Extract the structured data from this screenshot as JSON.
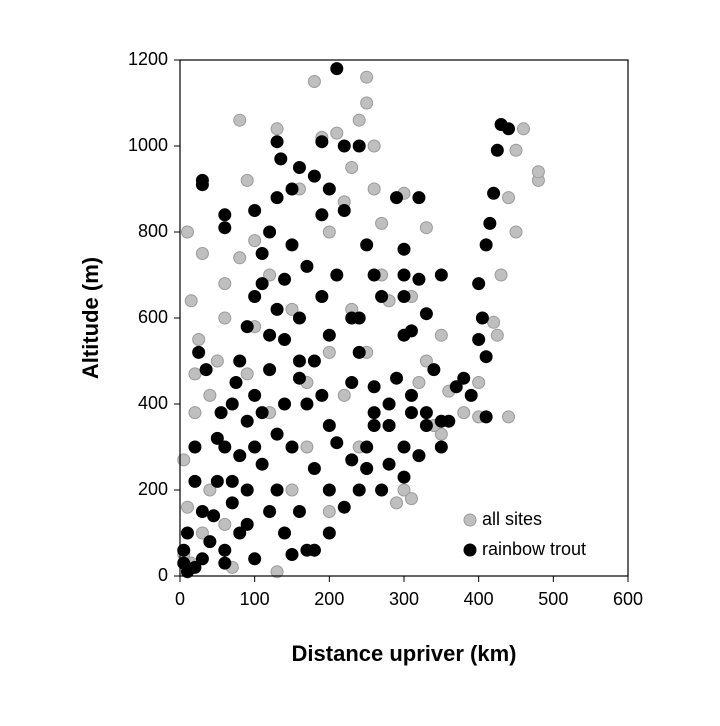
{
  "chart_data": {
    "type": "scatter",
    "xlabel": "Distance upriver (km)",
    "ylabel": "Altitude (m)",
    "xlim": [
      0,
      600
    ],
    "xticks": [
      0,
      100,
      200,
      300,
      400,
      500,
      600
    ],
    "ylim": [
      0,
      1200
    ],
    "yticks": [
      0,
      200,
      400,
      600,
      800,
      1000,
      1200
    ],
    "legend": "lower right",
    "series": [
      {
        "name": "all sites",
        "color": "#bfbfbf",
        "x": [
          30,
          10,
          15,
          80,
          90,
          130,
          180,
          250,
          250,
          240,
          460,
          480,
          450,
          440,
          450,
          430,
          420,
          425,
          400,
          440,
          300,
          330,
          310,
          120,
          60,
          50,
          20,
          5,
          100,
          150,
          200,
          250,
          280,
          320,
          300,
          350,
          70,
          130,
          30,
          5,
          260,
          270,
          230,
          200,
          170,
          40,
          20,
          60,
          100,
          160,
          190,
          230,
          350,
          330,
          290,
          310,
          340,
          240,
          280,
          270,
          100,
          80,
          40,
          10,
          170,
          180,
          220,
          250,
          360,
          380,
          400,
          25,
          15,
          90,
          150,
          120,
          60,
          200,
          220,
          210,
          260,
          480
        ],
        "values": [
          750,
          800,
          640,
          1060,
          920,
          1040,
          1150,
          1160,
          1100,
          1060,
          1040,
          920,
          990,
          880,
          800,
          700,
          590,
          560,
          450,
          370,
          890,
          810,
          650,
          700,
          600,
          500,
          380,
          270,
          300,
          200,
          150,
          250,
          350,
          450,
          200,
          330,
          20,
          10,
          100,
          50,
          900,
          700,
          620,
          520,
          450,
          420,
          470,
          680,
          780,
          900,
          1020,
          950,
          560,
          500,
          170,
          180,
          350,
          300,
          640,
          820,
          580,
          740,
          200,
          160,
          300,
          60,
          420,
          520,
          430,
          380,
          370,
          550,
          30,
          470,
          620,
          380,
          120,
          800,
          870,
          1030,
          1000,
          940
        ]
      },
      {
        "name": "rainbow trout",
        "color": "#000000",
        "x": [
          30,
          30,
          60,
          60,
          210,
          130,
          135,
          190,
          220,
          240,
          430,
          425,
          420,
          415,
          410,
          400,
          405,
          400,
          410,
          440,
          290,
          320,
          300,
          300,
          320,
          330,
          300,
          290,
          280,
          260,
          310,
          330,
          350,
          370,
          380,
          390,
          410,
          360,
          250,
          250,
          240,
          220,
          200,
          180,
          150,
          100,
          60,
          20,
          10,
          5,
          30,
          50,
          60,
          70,
          80,
          90,
          100,
          110,
          100,
          120,
          130,
          150,
          160,
          180,
          200,
          220,
          210,
          190,
          170,
          160,
          140,
          120,
          110,
          100,
          90,
          80,
          130,
          150,
          170,
          180,
          200,
          230,
          240,
          230,
          200,
          180,
          160,
          140,
          120,
          110,
          70,
          40,
          20,
          10,
          5,
          50,
          70,
          90,
          140,
          160,
          190,
          210,
          260,
          280,
          300,
          320,
          350,
          300,
          270,
          330,
          340,
          350,
          310,
          150,
          140,
          190,
          250,
          260,
          270,
          160,
          120,
          100,
          80,
          60,
          30,
          20,
          45,
          130,
          200,
          230,
          280,
          170,
          310,
          260,
          240,
          300,
          130,
          110,
          90,
          75,
          55,
          35,
          25
        ],
        "values": [
          920,
          910,
          840,
          810,
          1180,
          1010,
          970,
          1010,
          1000,
          1000,
          1050,
          990,
          890,
          820,
          770,
          680,
          600,
          550,
          510,
          1040,
          880,
          880,
          760,
          700,
          690,
          610,
          560,
          460,
          400,
          380,
          380,
          350,
          360,
          440,
          460,
          420,
          370,
          360,
          300,
          250,
          200,
          160,
          100,
          60,
          50,
          40,
          30,
          20,
          10,
          60,
          150,
          220,
          300,
          400,
          500,
          580,
          650,
          750,
          850,
          800,
          880,
          900,
          950,
          930,
          900,
          850,
          700,
          650,
          720,
          600,
          550,
          480,
          380,
          300,
          200,
          100,
          200,
          300,
          400,
          500,
          560,
          600,
          520,
          450,
          350,
          250,
          150,
          100,
          150,
          260,
          170,
          80,
          300,
          100,
          30,
          320,
          220,
          360,
          400,
          460,
          420,
          310,
          440,
          350,
          300,
          280,
          300,
          230,
          200,
          380,
          480,
          700,
          570,
          770,
          690,
          840,
          770,
          700,
          650,
          500,
          560,
          420,
          280,
          60,
          40,
          220,
          140,
          330,
          200,
          270,
          260,
          60,
          420,
          350,
          600,
          650,
          620,
          680,
          120,
          450,
          380,
          480,
          520
        ]
      }
    ]
  }
}
